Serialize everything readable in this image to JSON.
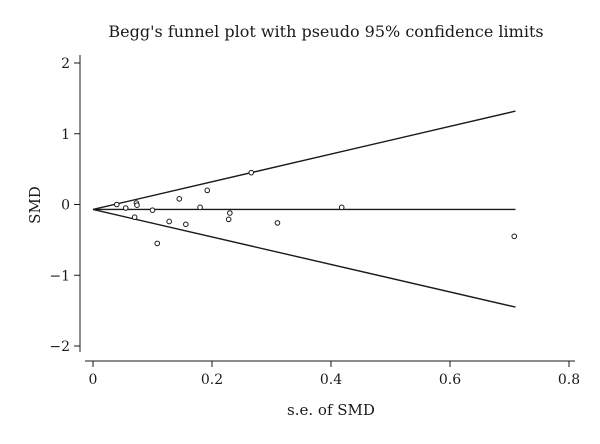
{
  "chart_data": {
    "type": "scatter",
    "title": "Begg's funnel plot with pseudo 95% confidence limits",
    "xlabel": "s.e. of SMD",
    "ylabel": "SMD",
    "xlim": [
      0,
      0.8
    ],
    "ylim": [
      -2,
      2
    ],
    "x_ticks": [
      0,
      0.2,
      0.4,
      0.6,
      0.8
    ],
    "x_tick_labels": [
      "0",
      "0.2",
      "0.4",
      "0.6",
      "0.8"
    ],
    "y_ticks": [
      -2,
      -1,
      0,
      1,
      2
    ],
    "y_tick_labels": [
      "−2",
      "−1",
      "0",
      "1",
      "2"
    ],
    "grid": false,
    "pooled_estimate": -0.07,
    "confidence_limits": {
      "x_max": 0.71,
      "upper_at_x_max": 1.32,
      "lower_at_x_max": -1.45
    },
    "points": [
      {
        "x": 0.04,
        "y": 0.0
      },
      {
        "x": 0.055,
        "y": -0.05
      },
      {
        "x": 0.07,
        "y": -0.18
      },
      {
        "x": 0.073,
        "y": 0.02
      },
      {
        "x": 0.074,
        "y": -0.01
      },
      {
        "x": 0.1,
        "y": -0.08
      },
      {
        "x": 0.108,
        "y": -0.55
      },
      {
        "x": 0.128,
        "y": -0.24
      },
      {
        "x": 0.145,
        "y": 0.08
      },
      {
        "x": 0.156,
        "y": -0.28
      },
      {
        "x": 0.18,
        "y": -0.04
      },
      {
        "x": 0.192,
        "y": 0.2
      },
      {
        "x": 0.228,
        "y": -0.21
      },
      {
        "x": 0.23,
        "y": -0.12
      },
      {
        "x": 0.266,
        "y": 0.45
      },
      {
        "x": 0.31,
        "y": -0.26
      },
      {
        "x": 0.418,
        "y": -0.04
      },
      {
        "x": 0.708,
        "y": -0.45
      }
    ]
  }
}
